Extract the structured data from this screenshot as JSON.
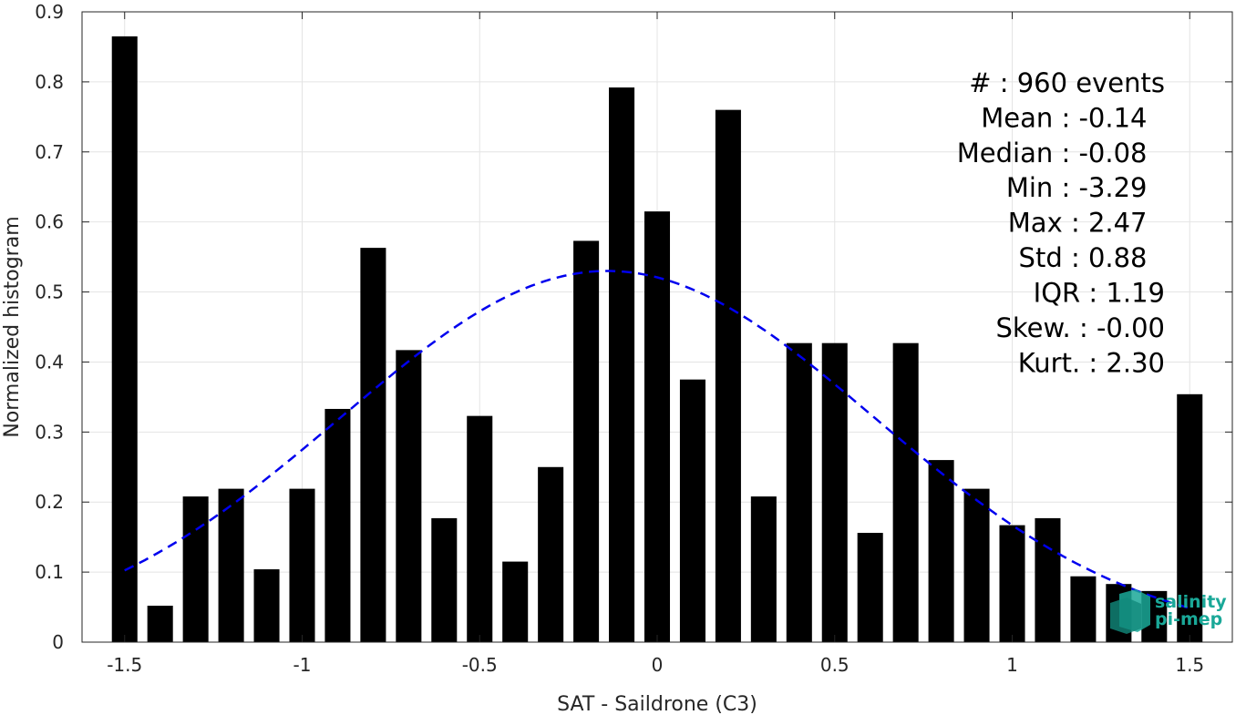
{
  "chart_data": {
    "type": "bar",
    "xlabel": "SAT - Saildrone (C3)",
    "ylabel": "Normalized histogram",
    "xlim": [
      -1.62,
      1.62
    ],
    "ylim": [
      0,
      0.9
    ],
    "grid": true,
    "x_ticks": [
      {
        "value": -1.5,
        "label": "-1.5"
      },
      {
        "value": -1,
        "label": "-1"
      },
      {
        "value": -0.5,
        "label": "-0.5"
      },
      {
        "value": 0,
        "label": "0"
      },
      {
        "value": 0.5,
        "label": "0.5"
      },
      {
        "value": 1,
        "label": "1"
      },
      {
        "value": 1.5,
        "label": "1.5"
      }
    ],
    "y_ticks": [
      {
        "value": 0,
        "label": "0"
      },
      {
        "value": 0.1,
        "label": "0.1"
      },
      {
        "value": 0.2,
        "label": "0.2"
      },
      {
        "value": 0.3,
        "label": "0.3"
      },
      {
        "value": 0.4,
        "label": "0.4"
      },
      {
        "value": 0.5,
        "label": "0.5"
      },
      {
        "value": 0.6,
        "label": "0.6"
      },
      {
        "value": 0.7,
        "label": "0.7"
      },
      {
        "value": 0.8,
        "label": "0.8"
      },
      {
        "value": 0.9,
        "label": "0.9"
      }
    ],
    "bar_width": 0.072,
    "bar_color": "#000000",
    "x": [
      -1.5,
      -1.4,
      -1.3,
      -1.2,
      -1.1,
      -1.0,
      -0.9,
      -0.8,
      -0.7,
      -0.6,
      -0.5,
      -0.4,
      -0.3,
      -0.2,
      -0.1,
      0.0,
      0.1,
      0.2,
      0.3,
      0.4,
      0.5,
      0.6,
      0.7,
      0.8,
      0.9,
      1.0,
      1.1,
      1.2,
      1.3,
      1.4,
      1.5
    ],
    "values": [
      0.865,
      0.052,
      0.208,
      0.219,
      0.104,
      0.219,
      0.333,
      0.563,
      0.417,
      0.177,
      0.323,
      0.115,
      0.25,
      0.573,
      0.792,
      0.615,
      0.375,
      0.76,
      0.208,
      0.427,
      0.427,
      0.156,
      0.427,
      0.26,
      0.219,
      0.167,
      0.177,
      0.094,
      0.083,
      0.073,
      0.354
    ],
    "fit_curve": {
      "style": "dashed",
      "color": "#0000ee",
      "mean": -0.14,
      "std": 0.75,
      "x_range": [
        -1.5,
        1.5
      ]
    },
    "stats": [
      {
        "text": "#  : 960 events",
        "right_x": 1.43
      },
      {
        "text": "Mean : -0.14",
        "right_x": 1.38
      },
      {
        "text": "Median : -0.08",
        "right_x": 1.38
      },
      {
        "text": "Min : -3.29",
        "right_x": 1.38
      },
      {
        "text": "Max : 2.47",
        "right_x": 1.38
      },
      {
        "text": "Std : 0.88",
        "right_x": 1.38
      },
      {
        "text": "IQR : 1.19",
        "right_x": 1.43
      },
      {
        "text": "Skew. : -0.00",
        "right_x": 1.43
      },
      {
        "text": "Kurt. : 2.30",
        "right_x": 1.43
      }
    ],
    "stats_top_y": 0.8,
    "stats_step_y": 0.05
  },
  "logo": {
    "line1": "salinity",
    "line2": "pi-mep",
    "color": "#1aa898"
  }
}
